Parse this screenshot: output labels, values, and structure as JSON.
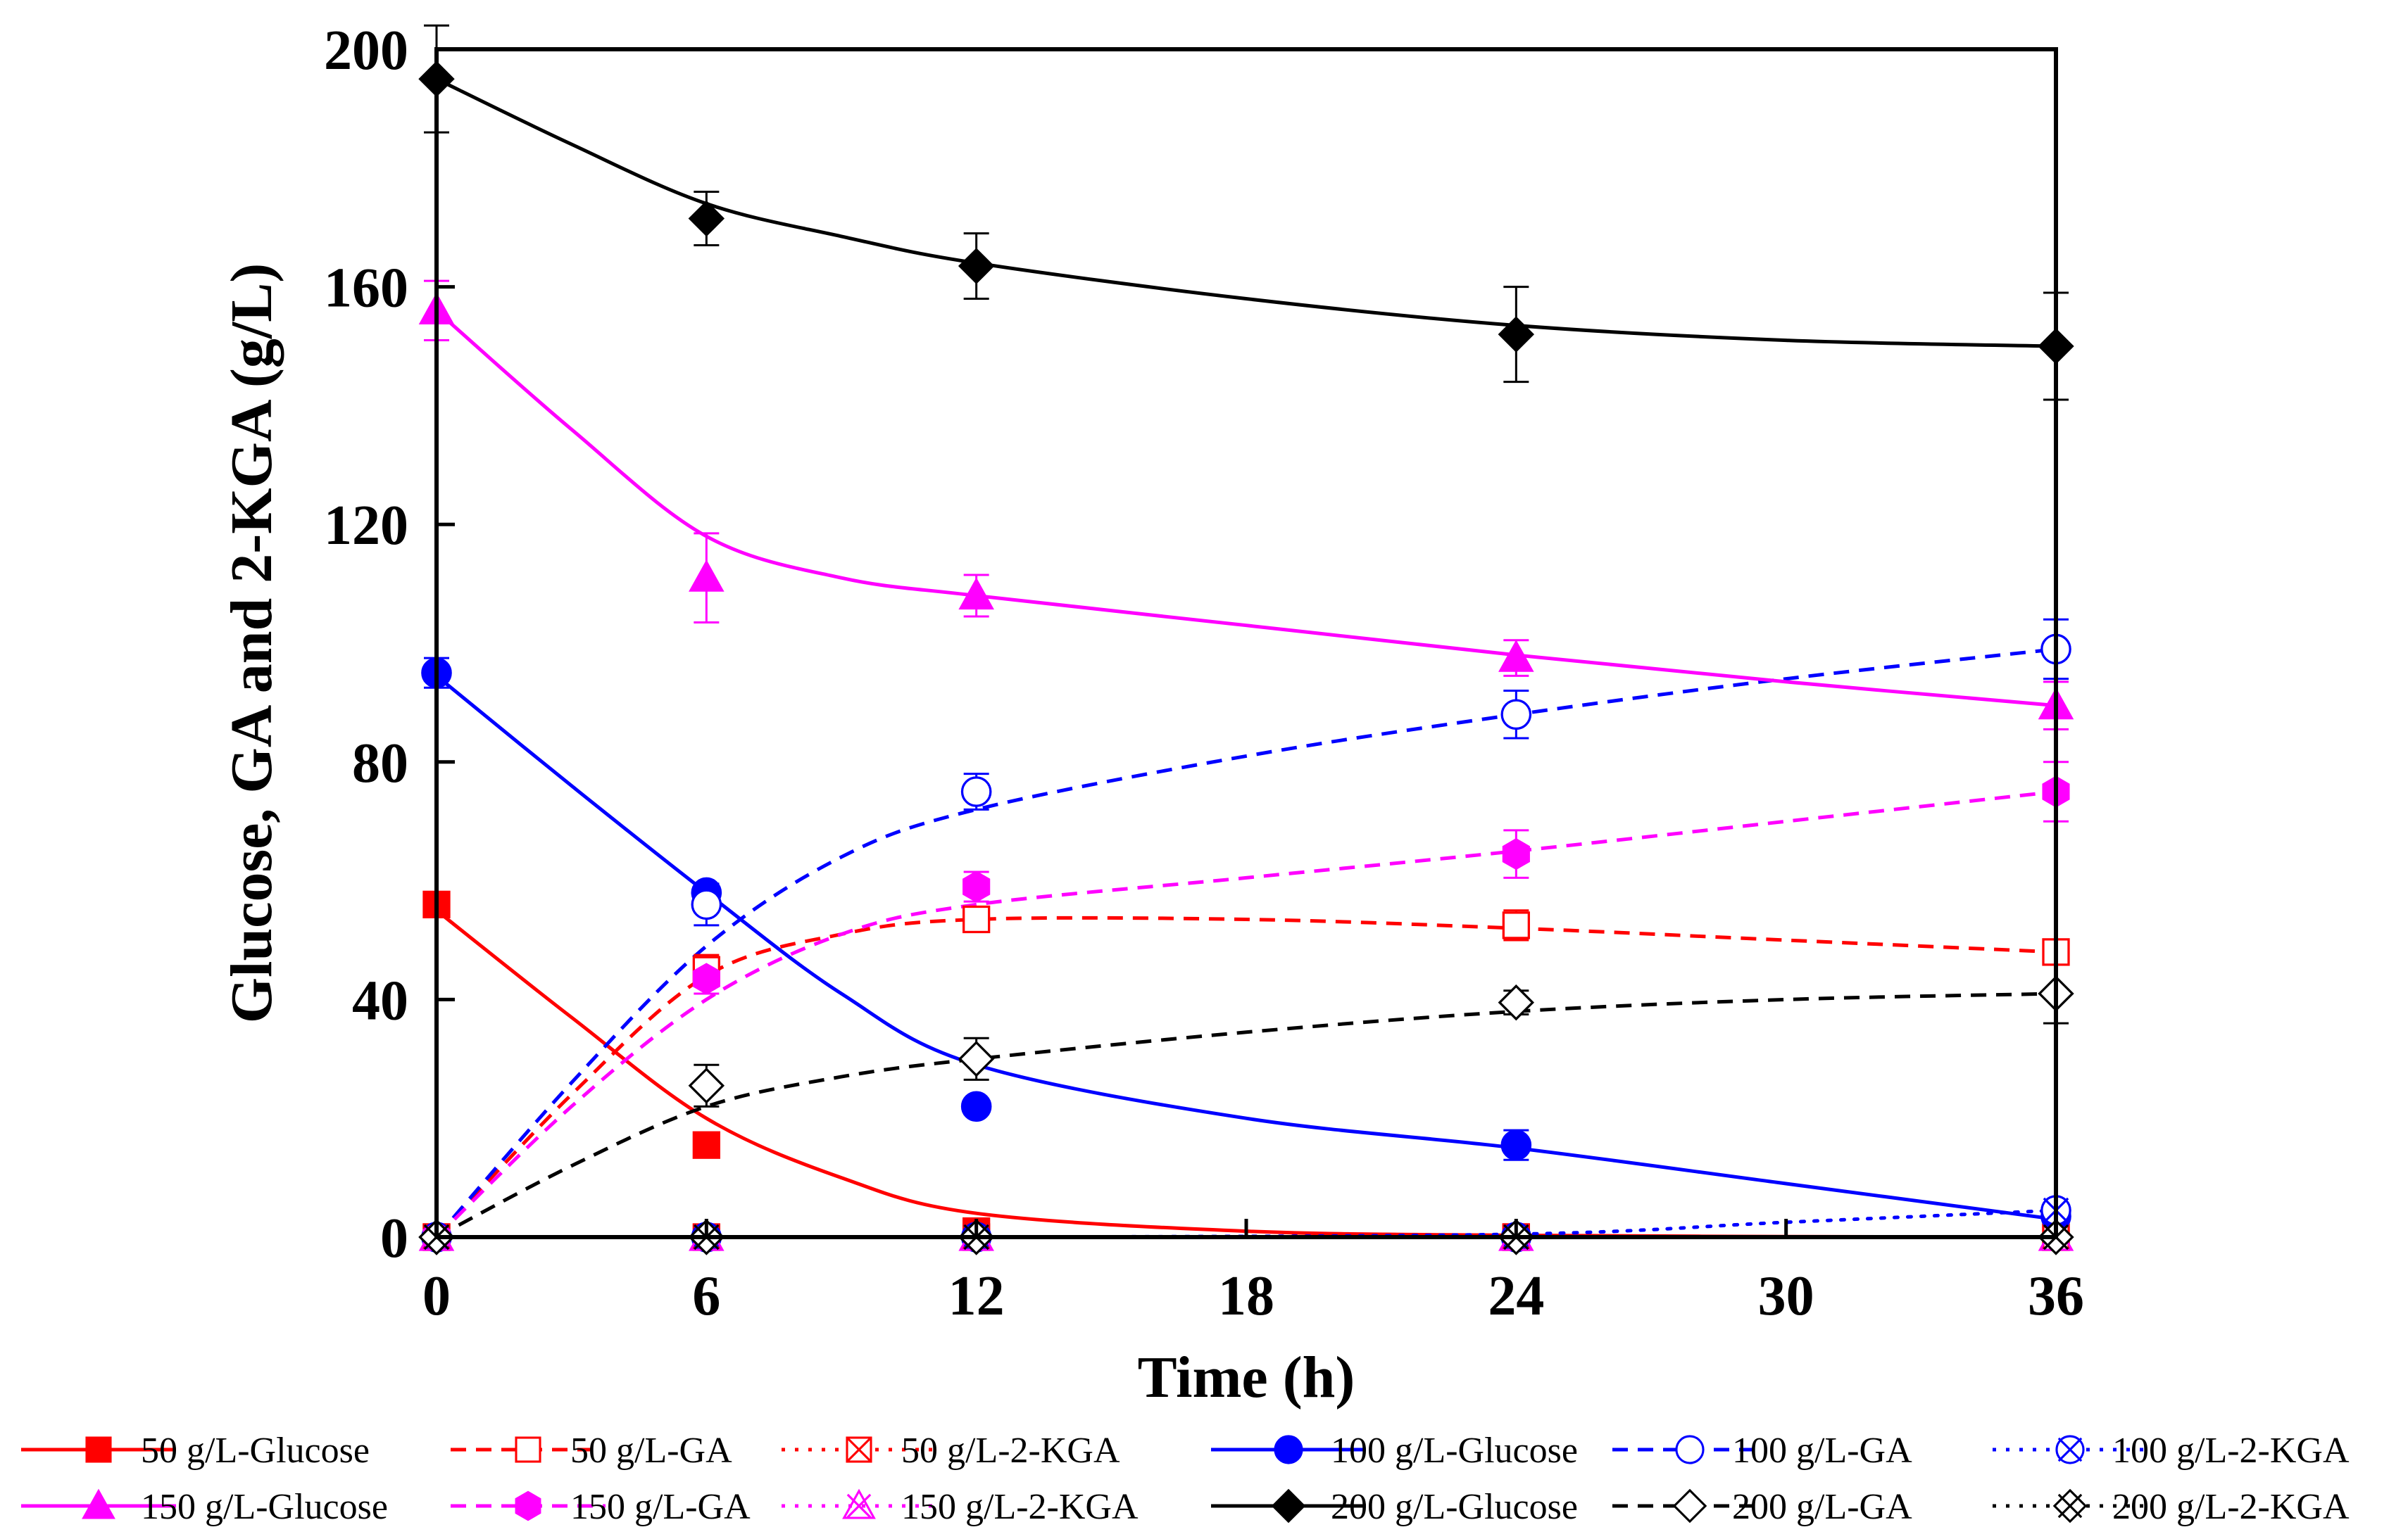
{
  "chart_data": {
    "type": "line",
    "title": "",
    "xlabel": "Time (h)",
    "ylabel": "Glucose, GA and 2-KGA (g/L)",
    "xlim": [
      0,
      36
    ],
    "ylim": [
      0,
      200
    ],
    "xticks": [
      0,
      6,
      12,
      18,
      24,
      30,
      36
    ],
    "yticks": [
      0,
      40,
      80,
      120,
      160,
      200
    ],
    "grid": false,
    "legend_position": "bottom",
    "x": [
      0,
      6,
      12,
      24,
      36
    ],
    "series": [
      {
        "name": "50 g/L-Glucose",
        "color": "#ff0000",
        "line": "solid",
        "marker": "square-filled",
        "values": [
          56,
          15.5,
          1,
          0,
          0
        ],
        "errors": [
          1.5,
          0,
          0,
          0,
          0
        ],
        "fit": [
          [
            0,
            55
          ],
          [
            3,
            37
          ],
          [
            6,
            20
          ],
          [
            9,
            10
          ],
          [
            12,
            4
          ],
          [
            18,
            1
          ],
          [
            24,
            0.3
          ],
          [
            30,
            0.1
          ],
          [
            36,
            0
          ]
        ]
      },
      {
        "name": "50 g/L-GA",
        "color": "#ff0000",
        "line": "dashed",
        "marker": "square-open",
        "values": [
          0,
          45,
          53.5,
          52.5,
          48
        ],
        "errors": [
          0,
          2.5,
          2,
          2.5,
          1.5
        ],
        "fit": [
          [
            0,
            0
          ],
          [
            3,
            24
          ],
          [
            6,
            44
          ],
          [
            9,
            51
          ],
          [
            12,
            53.5
          ],
          [
            18,
            53.5
          ],
          [
            24,
            52
          ],
          [
            30,
            50
          ],
          [
            36,
            48
          ]
        ]
      },
      {
        "name": "50 g/L-2-KGA",
        "color": "#ff0000",
        "line": "dotted",
        "marker": "square-x",
        "values": [
          0,
          0,
          0,
          0,
          0
        ],
        "errors": [
          0,
          0,
          0,
          0,
          0
        ],
        "fit": [
          [
            0,
            0
          ],
          [
            6,
            0
          ],
          [
            12,
            0
          ],
          [
            24,
            0
          ],
          [
            36,
            0
          ]
        ]
      },
      {
        "name": "100 g/L-Glucose",
        "color": "#0000ff",
        "line": "solid",
        "marker": "circle-filled",
        "values": [
          95,
          58,
          22,
          15.5,
          3.5
        ],
        "errors": [
          2.5,
          1.5,
          1,
          2.5,
          1.5
        ],
        "fit": [
          [
            0,
            94.5
          ],
          [
            3,
            76
          ],
          [
            6,
            58
          ],
          [
            9,
            41
          ],
          [
            12,
            29
          ],
          [
            18,
            20
          ],
          [
            24,
            15
          ],
          [
            30,
            9
          ],
          [
            36,
            3
          ]
        ]
      },
      {
        "name": "100 g/L-GA",
        "color": "#0000ff",
        "line": "dashed",
        "marker": "circle-open",
        "values": [
          0,
          56,
          75,
          88,
          99
        ],
        "errors": [
          0,
          3.5,
          3,
          4,
          5
        ],
        "fit": [
          [
            0,
            0
          ],
          [
            3,
            26
          ],
          [
            6,
            49
          ],
          [
            9,
            64
          ],
          [
            12,
            72
          ],
          [
            18,
            81
          ],
          [
            24,
            88
          ],
          [
            30,
            94
          ],
          [
            36,
            99
          ]
        ]
      },
      {
        "name": "100 g/L-2-KGA",
        "color": "#0000ff",
        "line": "dotted",
        "marker": "circle-x",
        "values": [
          0,
          0,
          0,
          0,
          4.5
        ],
        "errors": [
          0,
          0,
          0,
          0,
          0
        ],
        "fit": [
          [
            0,
            0
          ],
          [
            6,
            0
          ],
          [
            12,
            0
          ],
          [
            24,
            0.5
          ],
          [
            30,
            2.5
          ],
          [
            36,
            4.5
          ]
        ]
      },
      {
        "name": "150 g/L-Glucose",
        "color": "#ff00ff",
        "line": "solid",
        "marker": "triangle-filled",
        "values": [
          156,
          111,
          108,
          97.5,
          89.5
        ],
        "errors": [
          5,
          7.5,
          3.5,
          3,
          4
        ],
        "fit": [
          [
            0,
            156
          ],
          [
            3,
            136
          ],
          [
            6,
            118
          ],
          [
            9,
            111
          ],
          [
            12,
            108
          ],
          [
            18,
            103
          ],
          [
            24,
            98
          ],
          [
            30,
            93.5
          ],
          [
            36,
            89.5
          ]
        ]
      },
      {
        "name": "150 g/L-GA",
        "color": "#ff00ff",
        "line": "dashed",
        "marker": "hexagon-filled",
        "values": [
          0,
          43.5,
          59,
          64.5,
          75
        ],
        "errors": [
          0,
          2.5,
          2.5,
          4,
          5
        ],
        "fit": [
          [
            0,
            0
          ],
          [
            3,
            22
          ],
          [
            6,
            40
          ],
          [
            9,
            51
          ],
          [
            12,
            56
          ],
          [
            18,
            60.5
          ],
          [
            24,
            65
          ],
          [
            30,
            70
          ],
          [
            36,
            75
          ]
        ]
      },
      {
        "name": "150 g/L-2-KGA",
        "color": "#ff00ff",
        "line": "dotted",
        "marker": "triangle-x",
        "values": [
          0,
          0,
          0,
          0,
          0
        ],
        "errors": [
          0,
          0,
          0,
          0,
          0
        ],
        "fit": [
          [
            0,
            0
          ],
          [
            6,
            0
          ],
          [
            12,
            0
          ],
          [
            24,
            0
          ],
          [
            36,
            0
          ]
        ]
      },
      {
        "name": "200 g/L-Glucose",
        "color": "#000000",
        "line": "solid",
        "marker": "diamond-filled",
        "values": [
          195,
          171.5,
          163.5,
          152,
          150
        ],
        "errors": [
          9,
          4.5,
          5.5,
          8,
          9
        ],
        "fit": [
          [
            0,
            195
          ],
          [
            3,
            184
          ],
          [
            6,
            174
          ],
          [
            9,
            168.5
          ],
          [
            12,
            164
          ],
          [
            18,
            158
          ],
          [
            24,
            153.5
          ],
          [
            30,
            151
          ],
          [
            36,
            150
          ]
        ]
      },
      {
        "name": "200 g/L-GA",
        "color": "#000000",
        "line": "dashed",
        "marker": "diamond-open",
        "values": [
          0,
          25.5,
          30,
          39.5,
          41
        ],
        "errors": [
          0,
          3.5,
          3.5,
          2,
          5
        ],
        "fit": [
          [
            0,
            0
          ],
          [
            3,
            12
          ],
          [
            6,
            22
          ],
          [
            9,
            27
          ],
          [
            12,
            30
          ],
          [
            18,
            34.5
          ],
          [
            24,
            38
          ],
          [
            30,
            40
          ],
          [
            36,
            41
          ]
        ]
      },
      {
        "name": "200 g/L-2-KGA",
        "color": "#000000",
        "line": "dotted",
        "marker": "diamond-x",
        "values": [
          0,
          0,
          0,
          0,
          0
        ],
        "errors": [
          0,
          0,
          0,
          0,
          0
        ],
        "fit": [
          [
            0,
            0
          ],
          [
            6,
            0
          ],
          [
            12,
            0
          ],
          [
            24,
            0
          ],
          [
            36,
            0
          ]
        ]
      }
    ]
  }
}
